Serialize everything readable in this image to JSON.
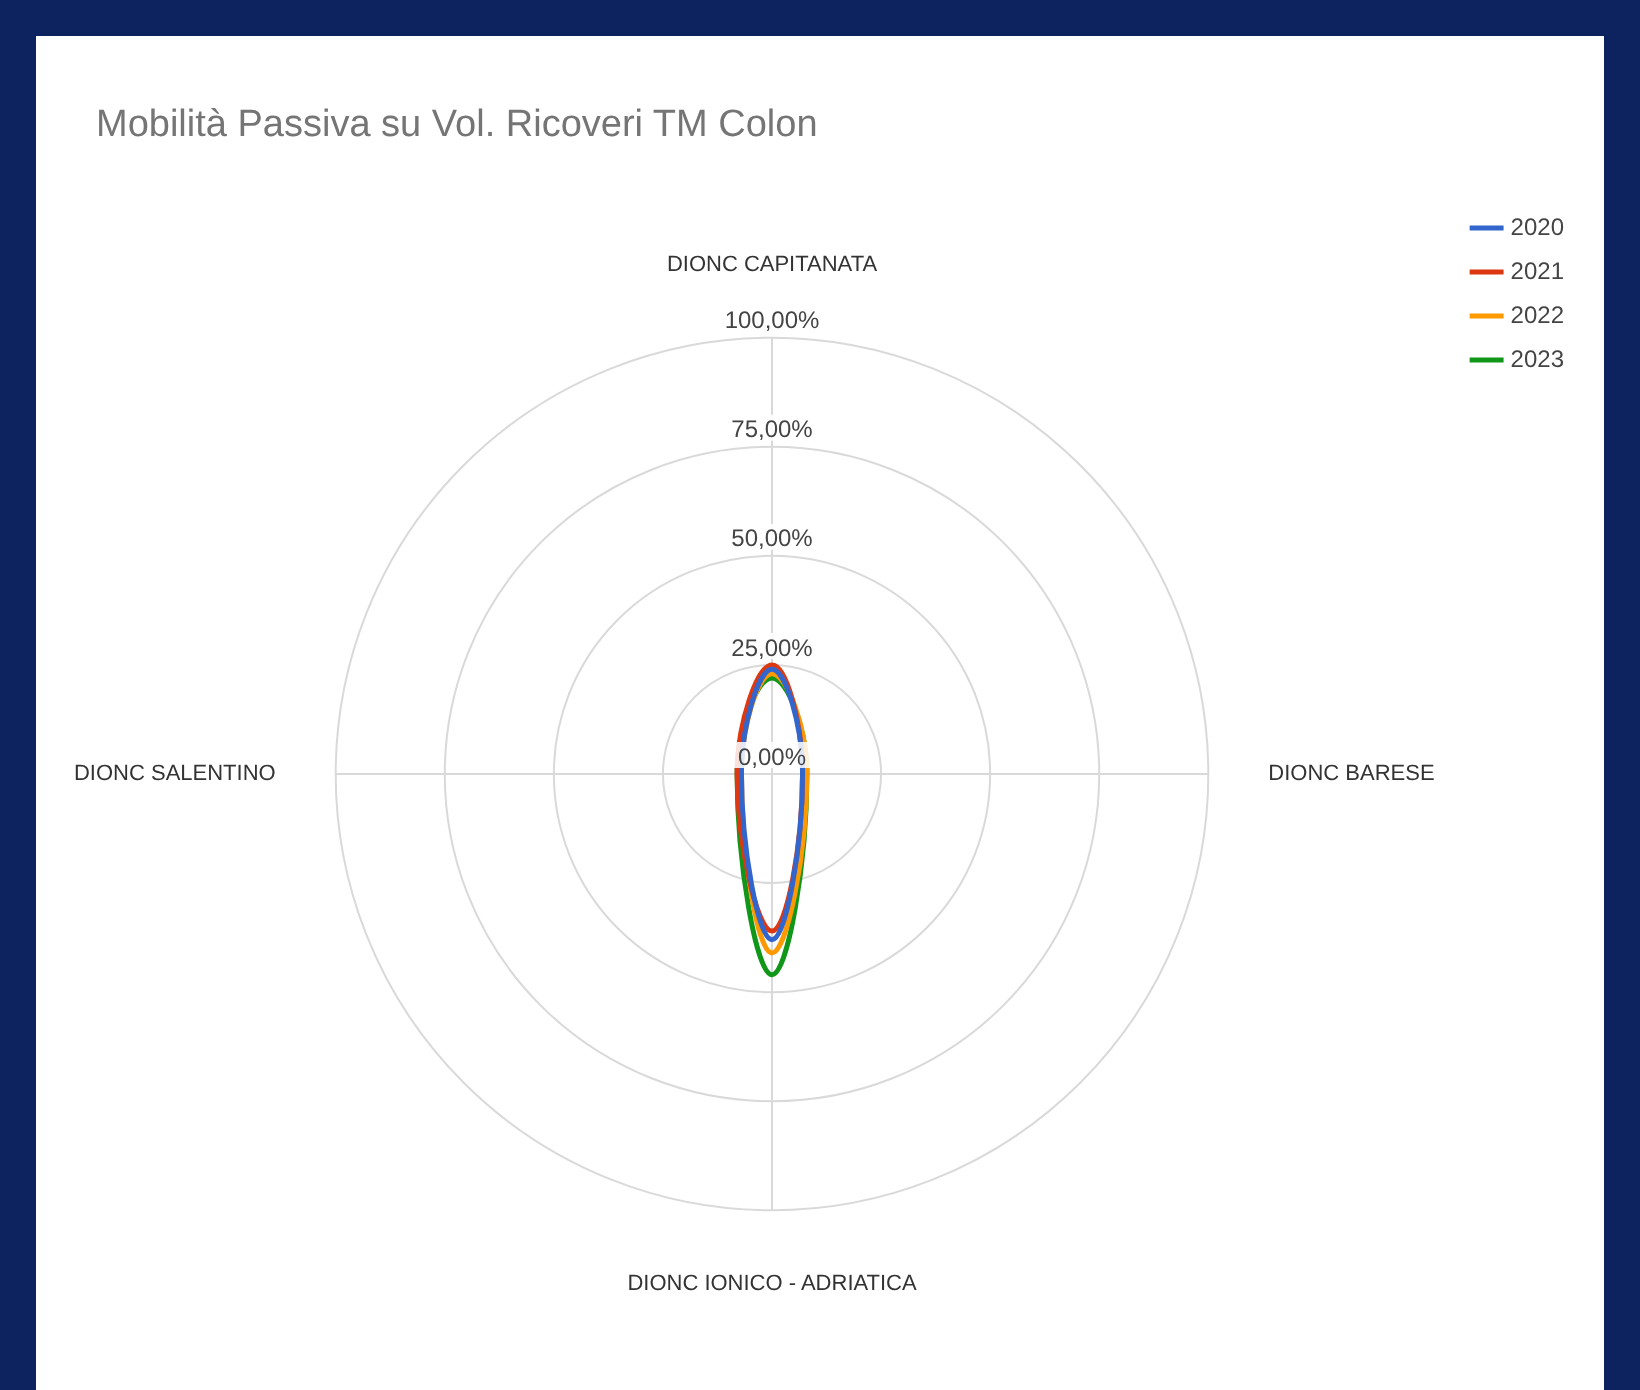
{
  "chart_data": {
    "type": "radar",
    "title": "Mobilità Passiva su Vol. Ricoveri TM Colon",
    "categories": [
      "DIONC CAPITANATA",
      "DIONC BARESE",
      "DIONC IONICO - ADRIATICA",
      "DIONC SALENTINO"
    ],
    "series": [
      {
        "name": "2020",
        "color": "#3366cc",
        "values": [
          24,
          7,
          38,
          7
        ]
      },
      {
        "name": "2021",
        "color": "#dc3912",
        "values": [
          25,
          7,
          36,
          8
        ]
      },
      {
        "name": "2022",
        "color": "#ff9900",
        "values": [
          23,
          8,
          41,
          7
        ]
      },
      {
        "name": "2023",
        "color": "#109618",
        "values": [
          22,
          8,
          46,
          8
        ]
      }
    ],
    "ylim": [
      0,
      100
    ],
    "yticks": [
      {
        "value": 0,
        "label": "0,00%"
      },
      {
        "value": 25,
        "label": "25,00%"
      },
      {
        "value": 50,
        "label": "50,00%"
      },
      {
        "value": 75,
        "label": "75,00%"
      },
      {
        "value": 100,
        "label": "100,00%"
      }
    ],
    "grid": true,
    "legend": "top right",
    "marker": "none",
    "line_style": "solid"
  }
}
